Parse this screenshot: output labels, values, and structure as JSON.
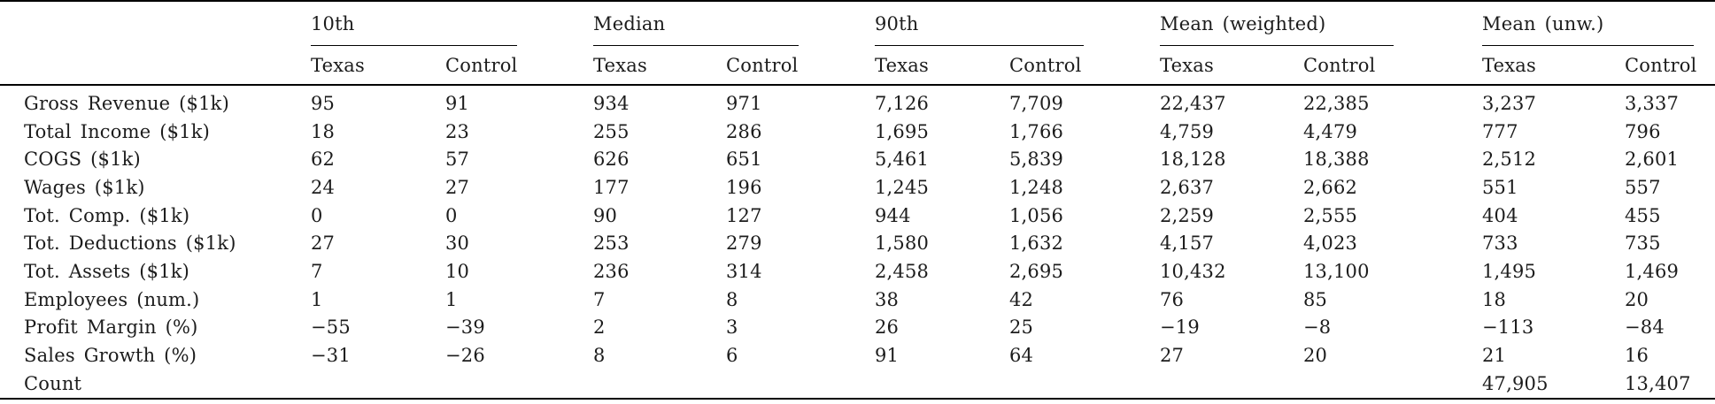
{
  "table": {
    "groups": [
      {
        "label": "10th"
      },
      {
        "label": "Median"
      },
      {
        "label": "90th"
      },
      {
        "label": "Mean (weighted)"
      },
      {
        "label": "Mean (unw.)"
      }
    ],
    "subheaders": {
      "first": "Texas",
      "second": "Control"
    },
    "rows": [
      {
        "label": "Gross Revenue ($1k)",
        "values": [
          "95",
          "91",
          "934",
          "971",
          "7,126",
          "7,709",
          "22,437",
          "22,385",
          "3,237",
          "3,337"
        ]
      },
      {
        "label": "Total Income ($1k)",
        "values": [
          "18",
          "23",
          "255",
          "286",
          "1,695",
          "1,766",
          "4,759",
          "4,479",
          "777",
          "796"
        ]
      },
      {
        "label": "COGS ($1k)",
        "values": [
          "62",
          "57",
          "626",
          "651",
          "5,461",
          "5,839",
          "18,128",
          "18,388",
          "2,512",
          "2,601"
        ]
      },
      {
        "label": "Wages ($1k)",
        "values": [
          "24",
          "27",
          "177",
          "196",
          "1,245",
          "1,248",
          "2,637",
          "2,662",
          "551",
          "557"
        ]
      },
      {
        "label": "Tot. Comp. ($1k)",
        "values": [
          "0",
          "0",
          "90",
          "127",
          "944",
          "1,056",
          "2,259",
          "2,555",
          "404",
          "455"
        ]
      },
      {
        "label": "Tot. Deductions ($1k)",
        "values": [
          "27",
          "30",
          "253",
          "279",
          "1,580",
          "1,632",
          "4,157",
          "4,023",
          "733",
          "735"
        ]
      },
      {
        "label": "Tot. Assets ($1k)",
        "values": [
          "7",
          "10",
          "236",
          "314",
          "2,458",
          "2,695",
          "10,432",
          "13,100",
          "1,495",
          "1,469"
        ]
      },
      {
        "label": "Employees (num.)",
        "values": [
          "1",
          "1",
          "7",
          "8",
          "38",
          "42",
          "76",
          "85",
          "18",
          "20"
        ]
      },
      {
        "label": "Profit Margin (%)",
        "values": [
          "−55",
          "−39",
          "2",
          "3",
          "26",
          "25",
          "−19",
          "−8",
          "−113",
          "−84"
        ]
      },
      {
        "label": "Sales Growth (%)",
        "values": [
          "−31",
          "−26",
          "8",
          "6",
          "91",
          "64",
          "27",
          "20",
          "21",
          "16"
        ]
      },
      {
        "label": "Count",
        "values": [
          "",
          "",
          "",
          "",
          "",
          "",
          "",
          "",
          "47,905",
          "13,407"
        ]
      }
    ],
    "colors": {
      "text": "#1c1c1c",
      "rule": "#000000",
      "background": "#ffffff"
    }
  }
}
